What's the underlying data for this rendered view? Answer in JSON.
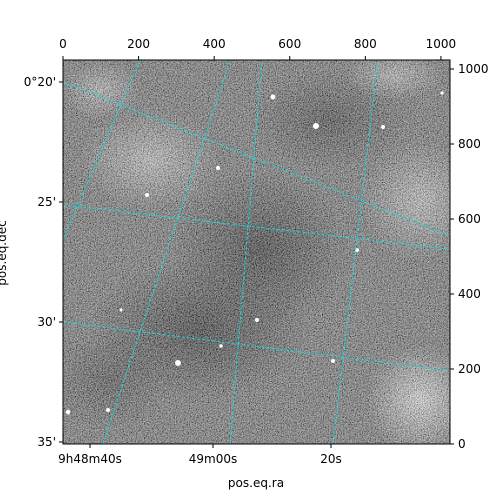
{
  "chart_data": {
    "type": "heatmap",
    "title": "",
    "xlabel": "pos.eq.ra",
    "ylabel": "pos.eq.dec",
    "pixel_axes": {
      "x_ticks": [
        0,
        200,
        400,
        600,
        800,
        1000
      ],
      "y_ticks": [
        0,
        200,
        400,
        600,
        800,
        1000
      ],
      "xlim": [
        0,
        1024
      ],
      "ylim": [
        0,
        1024
      ]
    },
    "ra_ticks": [
      "9h48m40s",
      "49m00s",
      "20s"
    ],
    "dec_ticks": [
      "0°20'",
      "25'",
      "30'",
      "35'"
    ],
    "image_description_colormap": "gray",
    "grid_color": "#00e5e5",
    "grid": true,
    "grid_style": "dashed"
  }
}
